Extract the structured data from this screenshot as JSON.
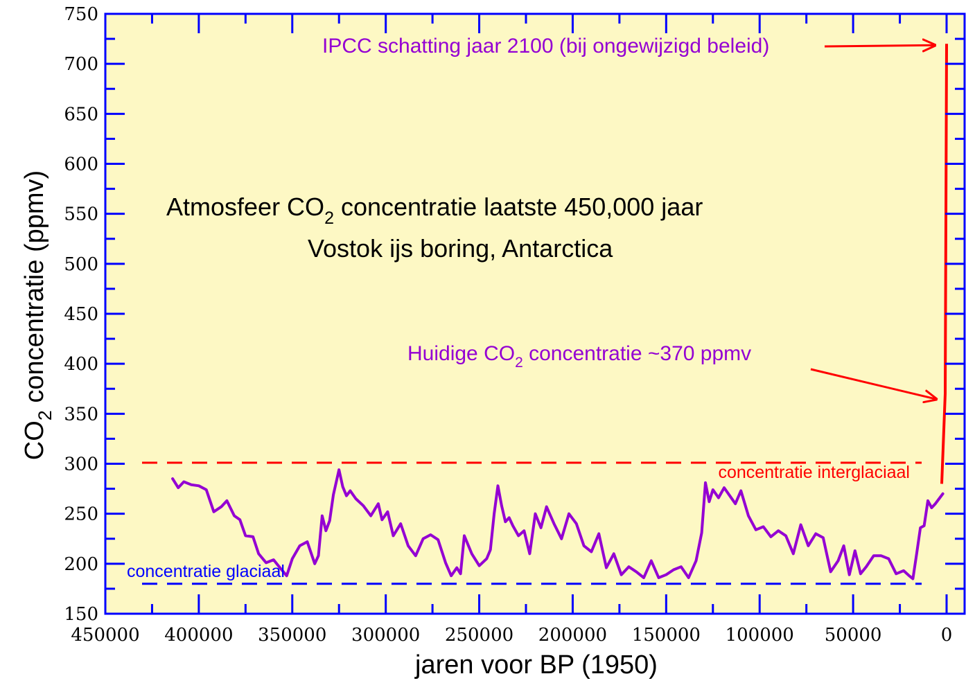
{
  "chart_data": {
    "type": "line",
    "title_line1_pre": "Atmosfeer CO",
    "title_line1_sub": "2",
    "title_line1_post": " concentratie laatste 450,000 jaar",
    "title_line2": "Vostok ijs boring, Antarctica",
    "xlabel": "jaren voor BP (1950)",
    "ylabel_pre": "CO",
    "ylabel_sub": "2",
    "ylabel_post": " concentratie (ppmv)",
    "xlim": [
      450000,
      0
    ],
    "ylim": [
      150,
      750
    ],
    "x_ticks": [
      "450000",
      "400000",
      "350000",
      "300000",
      "250000",
      "200000",
      "150000",
      "100000",
      "50000",
      "0"
    ],
    "y_ticks": [
      "150",
      "200",
      "250",
      "300",
      "350",
      "400",
      "450",
      "500",
      "550",
      "600",
      "650",
      "700",
      "750"
    ],
    "series": [
      {
        "color": "#9400D3",
        "x": [
          414000,
          411000,
          408000,
          404000,
          400000,
          396000,
          392000,
          388000,
          385000,
          381000,
          378000,
          375000,
          371000,
          368000,
          364000,
          360000,
          357000,
          353000,
          350000,
          346000,
          342000,
          338000,
          336000,
          334000,
          332000,
          330000,
          328000,
          325000,
          323000,
          321000,
          319000,
          316000,
          312000,
          308000,
          304000,
          302000,
          299000,
          296000,
          292000,
          288000,
          284000,
          280000,
          276000,
          272000,
          268000,
          265000,
          262000,
          260000,
          258000,
          254000,
          250000,
          246000,
          244000,
          242000,
          240000,
          238000,
          236000,
          234000,
          232000,
          229000,
          226000,
          223000,
          220000,
          217000,
          214000,
          210000,
          206000,
          202000,
          198000,
          194000,
          190000,
          186000,
          182000,
          178000,
          174000,
          170000,
          166000,
          162000,
          158000,
          154000,
          150000,
          146000,
          142000,
          138000,
          134000,
          131000,
          129000,
          127000,
          125000,
          122000,
          119000,
          116000,
          113000,
          110000,
          106000,
          102000,
          98000,
          94000,
          90000,
          86000,
          82000,
          78000,
          74000,
          70000,
          66000,
          62000,
          58000,
          55000,
          52000,
          49000,
          46000,
          43000,
          39000,
          35000,
          31000,
          27000,
          23000,
          20000,
          18000,
          16000,
          14000,
          12000,
          10000,
          8000,
          6000,
          4000,
          2000
        ],
        "y": [
          285,
          276,
          282,
          279,
          278,
          274,
          252,
          257,
          263,
          248,
          244,
          228,
          227,
          210,
          201,
          204,
          197,
          188,
          205,
          218,
          222,
          200,
          208,
          248,
          233,
          243,
          269,
          294,
          277,
          268,
          273,
          265,
          258,
          248,
          260,
          244,
          252,
          228,
          240,
          218,
          208,
          225,
          229,
          224,
          201,
          188,
          196,
          190,
          228,
          210,
          198,
          205,
          214,
          250,
          278,
          258,
          242,
          246,
          238,
          228,
          233,
          210,
          250,
          236,
          257,
          240,
          225,
          250,
          240,
          218,
          212,
          230,
          196,
          210,
          189,
          197,
          192,
          186,
          203,
          186,
          189,
          194,
          197,
          186,
          203,
          231,
          281,
          262,
          274,
          266,
          276,
          268,
          260,
          273,
          248,
          234,
          237,
          227,
          233,
          228,
          210,
          239,
          218,
          230,
          226,
          192,
          203,
          218,
          189,
          213,
          190,
          197,
          208,
          208,
          205,
          190,
          193,
          188,
          185,
          210,
          236,
          238,
          263,
          256,
          260,
          265,
          270
        ]
      }
    ],
    "projection": {
      "color": "#ff0000",
      "x": [
        0,
        0,
        0
      ],
      "y": [
        280,
        370,
        720
      ]
    },
    "interglacial_line": {
      "value": 301,
      "color": "#ff0000",
      "label": "concentratie interglaciaal"
    },
    "glacial_line": {
      "value": 180,
      "color": "#0000ff",
      "label": "concentratie glaciaal"
    },
    "annotations": {
      "ipcc": {
        "text": "IPCC schatting jaar 2100 (bij ongewijzigd beleid)",
        "color": "#9400D3",
        "arrow_color": "#ff0000"
      },
      "current_pre": "Huidige CO",
      "current_sub": "2",
      "current_post": " concentratie ~370 ppmv",
      "current_color": "#9400D3"
    },
    "colors": {
      "plot_background": "#fdf8c4",
      "frame": "#0000ff"
    },
    "grid": false
  }
}
